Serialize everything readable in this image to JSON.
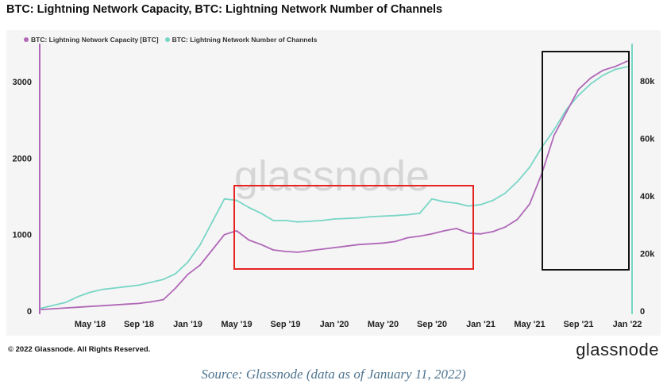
{
  "header": {
    "title": "BTC: Lightning Network Capacity, BTC: Lightning Network Number of Channels"
  },
  "footer": {
    "copyright": "© 2022 Glassnode. All Rights Reserved.",
    "brand": "glassnode",
    "source": "Source: Glassnode (data as of January 11, 2022)"
  },
  "watermark": "glassnode",
  "colors": {
    "capacity": "#b068b8",
    "channels": "#78d6c6",
    "red_box": "#e52421",
    "black_box": "#111111"
  },
  "chart_data": {
    "type": "line",
    "x": [
      "2018-01",
      "2018-02",
      "2018-03",
      "2018-04",
      "2018-05",
      "2018-06",
      "2018-07",
      "2018-08",
      "2018-09",
      "2018-10",
      "2018-11",
      "2018-12",
      "2019-01",
      "2019-02",
      "2019-03",
      "2019-04",
      "2019-05",
      "2019-06",
      "2019-07",
      "2019-08",
      "2019-09",
      "2019-10",
      "2019-11",
      "2019-12",
      "2020-01",
      "2020-02",
      "2020-03",
      "2020-04",
      "2020-05",
      "2020-06",
      "2020-07",
      "2020-08",
      "2020-09",
      "2020-10",
      "2020-11",
      "2020-12",
      "2021-01",
      "2021-02",
      "2021-03",
      "2021-04",
      "2021-05",
      "2021-06",
      "2021-07",
      "2021-08",
      "2021-09",
      "2021-10",
      "2021-11",
      "2021-12",
      "2022-01"
    ],
    "series": [
      {
        "name": "BTC: Lightning Network Capacity [BTC]",
        "axis": "left",
        "values": [
          20,
          30,
          40,
          50,
          60,
          70,
          80,
          90,
          100,
          120,
          150,
          300,
          480,
          600,
          800,
          1000,
          1050,
          930,
          870,
          800,
          780,
          770,
          790,
          810,
          830,
          850,
          870,
          880,
          890,
          910,
          960,
          980,
          1010,
          1050,
          1080,
          1020,
          1010,
          1040,
          1100,
          1200,
          1400,
          1800,
          2300,
          2600,
          2900,
          3050,
          3150,
          3200,
          3270
        ]
      },
      {
        "name": "BTC: Lightning Network Number of Channels",
        "axis": "right",
        "values": [
          1000,
          2000,
          3000,
          5000,
          6500,
          7500,
          8000,
          8500,
          9000,
          10000,
          11000,
          13000,
          17000,
          23000,
          31000,
          39000,
          38500,
          36000,
          34000,
          31500,
          31500,
          31000,
          31200,
          31500,
          32000,
          32200,
          32400,
          32800,
          33000,
          33200,
          33500,
          34000,
          39000,
          38000,
          37500,
          36500,
          37000,
          38500,
          41000,
          45000,
          50000,
          57000,
          63000,
          70000,
          75000,
          79000,
          82000,
          84000,
          85000
        ]
      }
    ],
    "x_ticks": [
      "May '18",
      "Sep '18",
      "Jan '19",
      "May '19",
      "Sep '19",
      "Jan '20",
      "May '20",
      "Sep '20",
      "Jan '21",
      "May '21",
      "Sep '21",
      "Jan '22"
    ],
    "y_left_ticks": [
      "0",
      "1000",
      "2000",
      "3000"
    ],
    "y_right_ticks": [
      "0",
      "20k",
      "40k",
      "60k",
      "80k"
    ],
    "ylim_left": [
      0,
      3500
    ],
    "ylim_right": [
      0,
      93000
    ],
    "grid": false,
    "legend_placement": "top-left"
  }
}
